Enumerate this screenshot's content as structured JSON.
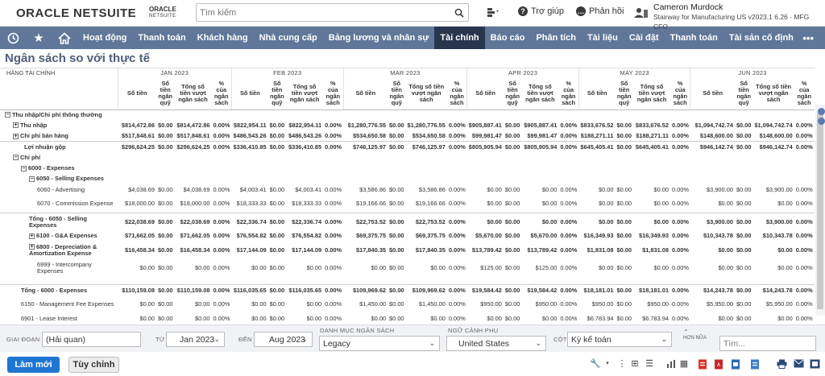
{
  "header": {
    "brand": "ORACLE NETSUITE",
    "brand_small_top": "ORACLE",
    "brand_small_bottom": "NETSUITE",
    "search_placeholder": "Tìm kiếm",
    "help_label": "Trợ giúp",
    "feedback_label": "Phản hồi",
    "user_name": "Cameron Murdock",
    "user_role": "Stairway for Manufacturing US v2023.1 6.26 - MFG CFO"
  },
  "nav": {
    "items": [
      "Hoạt động",
      "Thanh toán",
      "Khách hàng",
      "Nhà cung cấp",
      "Bảng lương và nhân sự",
      "Tài chính",
      "Báo cáo",
      "Phân tích",
      "Tài liệu",
      "Cài đặt",
      "Thanh toán",
      "Tài sản cố định"
    ],
    "active": "Tài chính",
    "more": "•••"
  },
  "page_title": "Ngân sách so với thực tế",
  "report": {
    "label_header": "HÀNG TÀI CHÍNH",
    "months": [
      "JAN 2023",
      "FEB 2023",
      "MAR 2023",
      "APR 2023",
      "MAY 2023",
      "JUN 2023"
    ],
    "col_headers": [
      "Số tiền",
      "Số tiền ngân quỹ",
      "Tổng số tiền vượt ngân sách",
      "% của ngân sách"
    ],
    "rows": [
      {
        "label": "Thu nhập/Chi phí thông thường",
        "indent": 0,
        "bold": true,
        "toggle": "−",
        "cells": null
      },
      {
        "label": "Thu nhập",
        "indent": 1,
        "bold": true,
        "toggle": "+",
        "cells": [
          "$814,472.86",
          "$0.00",
          "$814,472.86",
          "0.00%",
          "$822,954.11",
          "$0.00",
          "$822,954.11",
          "0.00%",
          "$1,280,776.55",
          "$0.00",
          "$1,280,776.55",
          "0.00%",
          "$905,887.41",
          "$0.00",
          "$905,887.41",
          "0.00%",
          "$833,676.52",
          "$0.00",
          "$833,676.52",
          "0.00%",
          "$1,094,742.74",
          "$0.00",
          "$1,094,742.74",
          "0.00%"
        ]
      },
      {
        "label": "Chi phí bán hàng",
        "indent": 1,
        "bold": true,
        "toggle": "+",
        "cells": [
          "$517,848.61",
          "$0.00",
          "$517,848.61",
          "0.00%",
          "$486,543.26",
          "$0.00",
          "$486,543.26",
          "0.00%",
          "$534,650.58",
          "$0.00",
          "$534,650.58",
          "0.00%",
          "$99,981.47",
          "$0.00",
          "$99,981.47",
          "0.00%",
          "$188,271.11",
          "$0.00",
          "$188,271.11",
          "0.00%",
          "$148,600.00",
          "$0.00",
          "$148,600.00",
          "0.00%"
        ]
      },
      {
        "label": "Lợi nhuận gộp",
        "indent": 1,
        "bold": true,
        "line": true,
        "cells": [
          "$296,624.25",
          "$0.00",
          "$296,624.25",
          "0.00%",
          "$336,410.85",
          "$0.00",
          "$336,410.85",
          "0.00%",
          "$746,125.97",
          "$0.00",
          "$746,125.97",
          "0.00%",
          "$805,905.94",
          "$0.00",
          "$805,905.94",
          "0.00%",
          "$645,405.41",
          "$0.00",
          "$645,405.41",
          "0.00%",
          "$946,142.74",
          "$0.00",
          "$946,142.74",
          "0.00%"
        ]
      },
      {
        "label": "Chi phí",
        "indent": 1,
        "bold": true,
        "toggle": "−",
        "cells": null
      },
      {
        "label": "6000 - Expenses",
        "indent": 2,
        "bold": true,
        "toggle": "−",
        "cells": null
      },
      {
        "label": "6050 - Selling Expenses",
        "indent": 3,
        "bold": true,
        "toggle": "−",
        "cells": null
      },
      {
        "label": "6060 - Advertising",
        "indent": 4,
        "bold": false,
        "cells": [
          "$4,038.69",
          "$0.00",
          "$4,038.69",
          "0.00%",
          "$4,003.41",
          "$0.00",
          "$4,003.41",
          "0.00%",
          "$3,586.86",
          "$0.00",
          "$3,586.86",
          "0.00%",
          "$0.00",
          "$0.00",
          "$0.00",
          "0.00%",
          "$0.00",
          "$0.00",
          "$0.00",
          "0.00%",
          "$3,900.00",
          "$0.00",
          "$3,900.00",
          "0.00%"
        ]
      },
      {
        "label": "6070 - Commission Expense",
        "indent": 4,
        "bold": false,
        "two": true,
        "cells": [
          "$18,000.00",
          "$0.00",
          "$18,000.00",
          "0.00%",
          "$18,333.33",
          "$0.00",
          "$18,333.33",
          "0.00%",
          "$19,166.66",
          "$0.00",
          "$19,166.66",
          "0.00%",
          "$0.00",
          "$0.00",
          "$0.00",
          "0.00%",
          "$0.00",
          "$0.00",
          "$0.00",
          "0.00%",
          "$0.00",
          "$0.00",
          "$0.00",
          "0.00%"
        ]
      },
      {
        "label": "Tổng - 6050 - Selling Expenses",
        "indent": 3,
        "bold": true,
        "two": true,
        "line": true,
        "cells": [
          "$22,038.69",
          "$0.00",
          "$22,038.69",
          "0.00%",
          "$22,336.74",
          "$0.00",
          "$22,336.74",
          "0.00%",
          "$22,753.52",
          "$0.00",
          "$22,753.52",
          "0.00%",
          "$0.00",
          "$0.00",
          "$0.00",
          "0.00%",
          "$0.00",
          "$0.00",
          "$0.00",
          "0.00%",
          "$3,900.00",
          "$0.00",
          "$3,900.00",
          "0.00%"
        ]
      },
      {
        "label": "6100 - G&A Expenses",
        "indent": 3,
        "bold": true,
        "toggle": "+",
        "cells": [
          "$71,662.05",
          "$0.00",
          "$71,662.05",
          "0.00%",
          "$76,554.82",
          "$0.00",
          "$76,554.82",
          "0.00%",
          "$69,375.75",
          "$0.00",
          "$69,375.75",
          "0.00%",
          "$5,670.00",
          "$0.00",
          "$5,670.00",
          "0.00%",
          "$16,349.93",
          "$0.00",
          "$16,349.93",
          "0.00%",
          "$10,343.78",
          "$0.00",
          "$10,343.78",
          "0.00%"
        ]
      },
      {
        "label": "6800 - Depreciation & Amortization Expense",
        "indent": 3,
        "bold": true,
        "toggle": "+",
        "two": true,
        "cells": [
          "$16,458.34",
          "$0.00",
          "$16,458.34",
          "0.00%",
          "$17,144.09",
          "$0.00",
          "$17,144.09",
          "0.00%",
          "$17,840.35",
          "$0.00",
          "$17,840.35",
          "0.00%",
          "$13,789.42",
          "$0.00",
          "$13,789.42",
          "0.00%",
          "$1,831.08",
          "$0.00",
          "$1,831.08",
          "0.00%",
          "$0.00",
          "$0.00",
          "$0.00",
          "0.00%"
        ]
      },
      {
        "label": "6999 - Intercompany Expenses",
        "indent": 4,
        "bold": false,
        "two": true,
        "cells": [
          "$0.00",
          "$0.00",
          "$0.00",
          "0.00%",
          "$0.00",
          "$0.00",
          "$0.00",
          "0.00%",
          "$0.00",
          "$0.00",
          "$0.00",
          "0.00%",
          "$125.00",
          "$0.00",
          "$125.00",
          "0.00%",
          "$0.00",
          "$0.00",
          "$0.00",
          "0.00%",
          "$0.00",
          "$0.00",
          "$0.00",
          "0.00%"
        ]
      },
      {
        "label": "",
        "spacer": true,
        "cells": null
      },
      {
        "label": "Tổng - 6000 - Expenses",
        "indent": 2,
        "bold": true,
        "line": true,
        "cells": [
          "$110,159.08",
          "$0.00",
          "$110,159.08",
          "0.00%",
          "$116,035.65",
          "$0.00",
          "$116,035.65",
          "0.00%",
          "$109,969.62",
          "$0.00",
          "$109,969.62",
          "0.00%",
          "$19,584.42",
          "$0.00",
          "$19,584.42",
          "0.00%",
          "$18,181.01",
          "$0.00",
          "$18,181.01",
          "0.00%",
          "$14,243.78",
          "$0.00",
          "$14,243.78",
          "0.00%"
        ]
      },
      {
        "label": "6150 - Management Fee Expenses",
        "indent": 2,
        "bold": false,
        "two": true,
        "cells": [
          "$0.00",
          "$0.00",
          "$0.00",
          "0.00%",
          "$0.00",
          "$0.00",
          "$0.00",
          "0.00%",
          "$1,450.00",
          "$0.00",
          "$1,450.00",
          "0.00%",
          "$950.00",
          "$0.00",
          "$950.00",
          "0.00%",
          "$950.00",
          "$0.00",
          "$950.00",
          "0.00%",
          "$5,950.00",
          "$0.00",
          "$5,950.00",
          "0.00%"
        ]
      },
      {
        "label": "6901 - Lease Interest",
        "indent": 2,
        "bold": false,
        "cells": [
          "$0.00",
          "$0.00",
          "$0.00",
          "0.00%",
          "$0.00",
          "$0.00",
          "$0.00",
          "0.00%",
          "$0.00",
          "$0.00",
          "$0.00",
          "0.00%",
          "$0.00",
          "$0.00",
          "$0.00",
          "0.00%",
          "$6,783.94",
          "$0.00",
          "$6,783.94",
          "0.00%",
          "$0.00",
          "$0.00",
          "$0.00",
          "0.00%"
        ]
      }
    ]
  },
  "filters": {
    "period_label": "GIAI ĐOẠN",
    "period_value": "(Hải quan)",
    "from_label": "TỪ",
    "from_value": "Jan 2023",
    "to_label": "ĐẾN",
    "to_value": "Aug 2023",
    "budget_cat_label": "DANH MỤC NGÂN SÁCH",
    "budget_cat_value": "Legacy",
    "sub_context_label": "NGỮ CẢNH PHỤ",
    "sub_context_value": "United States",
    "column_label": "CỘT",
    "column_value": "Kỳ kế toán",
    "more_label": "HƠN NỮA",
    "find_placeholder": "Tìm..."
  },
  "footer": {
    "new_label": "Làm mới",
    "customize_label": "Tùy chỉnh"
  },
  "colors": {
    "nav_bg": "#607799",
    "nav_active": "#28364d",
    "title": "#4d5f79",
    "primary_button": "#1f76d2"
  }
}
